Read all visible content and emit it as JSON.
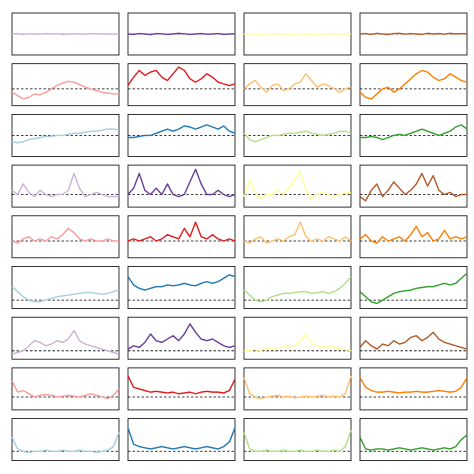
{
  "chart_data": [
    {
      "type": "line",
      "color": "#cab2d6",
      "xlim": [
        0,
        19
      ],
      "ylim": [
        -1,
        1
      ],
      "hline": 0,
      "values": [
        0,
        0.02,
        -0.02,
        0.01,
        0,
        -0.01,
        0.02,
        0,
        0.01,
        -0.02,
        0,
        0.01,
        0,
        -0.01,
        0.02,
        0,
        0.01,
        0,
        -0.01,
        0
      ]
    },
    {
      "type": "line",
      "color": "#6a3d9a",
      "xlim": [
        0,
        19
      ],
      "ylim": [
        -1,
        1
      ],
      "hline": 0,
      "values": [
        0,
        -0.02,
        0.02,
        0,
        -0.03,
        0.02,
        0.01,
        -0.02,
        0,
        0.03,
        0.01,
        -0.02,
        0,
        0.02,
        -0.01,
        0,
        0.02,
        -0.02,
        0,
        0.01
      ]
    },
    {
      "type": "line",
      "color": "#ffff99",
      "xlim": [
        0,
        19
      ],
      "ylim": [
        -1,
        1
      ],
      "hline": 0,
      "values": [
        0,
        0.01,
        0,
        -0.01,
        0.01,
        0,
        0,
        0.01,
        -0.01,
        0,
        0.01,
        0,
        -0.01,
        0,
        0.01,
        0,
        0,
        0.01,
        0,
        0
      ]
    },
    {
      "type": "line",
      "color": "#b15928",
      "xlim": [
        0,
        19
      ],
      "ylim": [
        -1,
        1
      ],
      "hline": 0,
      "values": [
        0,
        0.02,
        -0.02,
        0.03,
        0,
        -0.02,
        0.02,
        0.03,
        -0.01,
        0.02,
        0,
        -0.02,
        0.03,
        0,
        0.02,
        -0.01,
        0.03,
        0,
        0.02,
        0
      ]
    },
    {
      "type": "line",
      "color": "#fb9a99",
      "xlim": [
        0,
        19
      ],
      "ylim": [
        -1,
        1.5
      ],
      "hline": 0,
      "values": [
        -0.2,
        -0.4,
        -0.6,
        -0.5,
        -0.3,
        -0.35,
        -0.2,
        0,
        0.2,
        0.35,
        0.45,
        0.4,
        0.25,
        0.1,
        0,
        -0.1,
        -0.2,
        -0.25,
        -0.3,
        -0.3
      ]
    },
    {
      "type": "line",
      "color": "#e31a1c",
      "xlim": [
        0,
        19
      ],
      "ylim": [
        -1,
        1.5
      ],
      "hline": 0,
      "values": [
        0.2,
        0.7,
        1.1,
        0.8,
        1.0,
        1.1,
        0.7,
        0.5,
        0.9,
        1.3,
        1.1,
        0.6,
        0.4,
        0.6,
        0.9,
        0.7,
        0.4,
        0.3,
        0.2,
        0.3
      ]
    },
    {
      "type": "line",
      "color": "#fdbf6f",
      "xlim": [
        0,
        19
      ],
      "ylim": [
        -1,
        1.5
      ],
      "hline": 0,
      "values": [
        0,
        0.3,
        0.5,
        0.1,
        -0.2,
        0.2,
        0.3,
        -0.1,
        0,
        0.3,
        0.4,
        0.9,
        0.5,
        0.1,
        0.3,
        0.2,
        0,
        -0.2,
        0,
        0.1
      ]
    },
    {
      "type": "line",
      "color": "#ff7f00",
      "xlim": [
        0,
        19
      ],
      "ylim": [
        -1,
        1.5
      ],
      "hline": 0,
      "values": [
        -0.2,
        -0.5,
        -0.6,
        -0.3,
        0,
        0.1,
        -0.2,
        0,
        0.3,
        0.6,
        0.9,
        1.1,
        1.0,
        0.7,
        0.5,
        0.6,
        0.9,
        0.7,
        0.5,
        0.4
      ]
    },
    {
      "type": "line",
      "color": "#a6cee3",
      "xlim": [
        0,
        19
      ],
      "ylim": [
        -1,
        1
      ],
      "hline": 0,
      "values": [
        -0.3,
        -0.35,
        -0.3,
        -0.2,
        -0.15,
        -0.1,
        -0.05,
        -0.05,
        0,
        0,
        0.05,
        0.1,
        0.1,
        0.15,
        0.2,
        0.2,
        0.25,
        0.3,
        0.3,
        0.25
      ]
    },
    {
      "type": "line",
      "color": "#1f78b4",
      "xlim": [
        0,
        19
      ],
      "ylim": [
        -1,
        1
      ],
      "hline": 0,
      "values": [
        -0.1,
        -0.1,
        -0.05,
        0,
        0,
        0.1,
        0.2,
        0.3,
        0.2,
        0.3,
        0.45,
        0.4,
        0.3,
        0.4,
        0.5,
        0.4,
        0.3,
        0.45,
        0.2,
        0.1
      ]
    },
    {
      "type": "line",
      "color": "#b2df8a",
      "xlim": [
        0,
        19
      ],
      "ylim": [
        -1,
        1
      ],
      "hline": 0,
      "values": [
        0.1,
        -0.2,
        -0.3,
        -0.2,
        -0.1,
        0,
        0,
        0.05,
        0.1,
        0.1,
        0.15,
        0.2,
        0.1,
        0.05,
        0,
        0.05,
        0.1,
        0.2,
        0.2,
        0.1
      ]
    },
    {
      "type": "line",
      "color": "#33a02c",
      "xlim": [
        0,
        19
      ],
      "ylim": [
        -1,
        1
      ],
      "hline": 0,
      "values": [
        -0.1,
        -0.1,
        -0.05,
        -0.1,
        -0.2,
        -0.1,
        0,
        0.05,
        0,
        0.1,
        0.2,
        0.3,
        0.2,
        0.1,
        0,
        0.1,
        0.2,
        0.4,
        0.5,
        0.3
      ]
    },
    {
      "type": "line",
      "color": "#cab2d6",
      "xlim": [
        0,
        19
      ],
      "ylim": [
        -0.6,
        1.4
      ],
      "hline": 0,
      "values": [
        0.2,
        0,
        0.5,
        0.1,
        -0.1,
        0.2,
        0,
        -0.1,
        0,
        0,
        0.2,
        1.0,
        0.3,
        -0.1,
        0,
        0.1,
        0,
        -0.1,
        -0.1,
        -0.1
      ]
    },
    {
      "type": "line",
      "color": "#6a3d9a",
      "xlim": [
        0,
        19
      ],
      "ylim": [
        -0.6,
        1.4
      ],
      "hline": 0,
      "values": [
        0,
        0.3,
        1.0,
        0.2,
        0,
        0.3,
        0,
        0.5,
        0,
        -0.1,
        0,
        0.6,
        1.2,
        0.5,
        0,
        0,
        0.2,
        0,
        -0.1,
        0
      ]
    },
    {
      "type": "line",
      "color": "#ffff99",
      "xlim": [
        0,
        19
      ],
      "ylim": [
        -0.6,
        1.4
      ],
      "hline": 0,
      "values": [
        -0.1,
        0.7,
        0.1,
        -0.2,
        0,
        0,
        0.2,
        0,
        0.3,
        0.7,
        1.1,
        0.2,
        -0.2,
        0,
        0.1,
        0,
        -0.1,
        0,
        0.1,
        0.1
      ]
    },
    {
      "type": "line",
      "color": "#b15928",
      "xlim": [
        0,
        19
      ],
      "ylim": [
        -0.6,
        1.4
      ],
      "hline": 0,
      "values": [
        -0.1,
        -0.3,
        0.2,
        0.5,
        -0.1,
        0.2,
        0.6,
        0.3,
        0,
        0.2,
        0.5,
        1.0,
        0.4,
        0.9,
        0.2,
        0,
        0.1,
        -0.1,
        0,
        0
      ]
    },
    {
      "type": "line",
      "color": "#fb9a99",
      "xlim": [
        0,
        19
      ],
      "ylim": [
        -0.8,
        1.2
      ],
      "hline": 0,
      "values": [
        0,
        -0.1,
        0.1,
        0.2,
        0,
        0.1,
        0,
        0.2,
        0.1,
        0.3,
        0.6,
        0.4,
        0.1,
        0,
        0.1,
        0,
        0,
        0.1,
        0,
        0
      ]
    },
    {
      "type": "line",
      "color": "#e31a1c",
      "xlim": [
        0,
        19
      ],
      "ylim": [
        -0.8,
        1.2
      ],
      "hline": 0,
      "values": [
        0,
        0.1,
        0,
        0.1,
        0.2,
        0,
        0.1,
        0.3,
        0.2,
        0.1,
        0.6,
        0.2,
        0.9,
        0.2,
        0.1,
        0.3,
        0.1,
        0,
        0.1,
        0
      ]
    },
    {
      "type": "line",
      "color": "#fdbf6f",
      "xlim": [
        0,
        19
      ],
      "ylim": [
        -0.8,
        1.2
      ],
      "hline": 0,
      "values": [
        0,
        -0.1,
        0.1,
        0.2,
        -0.1,
        0,
        0.1,
        0,
        0.2,
        0.3,
        0.9,
        0.2,
        0,
        0.1,
        0,
        0.2,
        0.1,
        0,
        0.2,
        0
      ]
    },
    {
      "type": "line",
      "color": "#ff7f00",
      "xlim": [
        0,
        19
      ],
      "ylim": [
        -0.8,
        1.2
      ],
      "hline": 0,
      "values": [
        0.1,
        0.3,
        0,
        -0.1,
        0.2,
        0,
        0.1,
        0.2,
        0,
        0.3,
        0.7,
        0.2,
        0.4,
        0,
        0.1,
        0.5,
        0.1,
        0.2,
        0.1,
        0.2
      ]
    },
    {
      "type": "line",
      "color": "#a6cee3",
      "xlim": [
        0,
        19
      ],
      "ylim": [
        -0.5,
        2
      ],
      "hline": 0,
      "values": [
        0.8,
        0.5,
        0.2,
        0,
        -0.1,
        -0.1,
        0,
        0.1,
        0.2,
        0.25,
        0.3,
        0.35,
        0.4,
        0.45,
        0.45,
        0.4,
        0.35,
        0.4,
        0.5,
        0.6
      ]
    },
    {
      "type": "line",
      "color": "#1f78b4",
      "xlim": [
        0,
        19
      ],
      "ylim": [
        -0.5,
        2
      ],
      "hline": 0,
      "values": [
        1.4,
        0.9,
        0.7,
        0.6,
        0.7,
        0.8,
        0.8,
        0.9,
        0.85,
        0.9,
        1.0,
        0.9,
        0.85,
        1.0,
        1.1,
        1.0,
        1.1,
        1.3,
        1.5,
        1.4
      ]
    },
    {
      "type": "line",
      "color": "#b2df8a",
      "xlim": [
        0,
        19
      ],
      "ylim": [
        -0.5,
        2
      ],
      "hline": 0,
      "values": [
        0.6,
        0.3,
        0,
        -0.1,
        0,
        0.2,
        0.3,
        0.4,
        0.4,
        0.45,
        0.5,
        0.5,
        0.4,
        0.45,
        0.5,
        0.4,
        0.5,
        0.7,
        1.0,
        1.4
      ]
    },
    {
      "type": "line",
      "color": "#33a02c",
      "xlim": [
        0,
        19
      ],
      "ylim": [
        -0.5,
        2
      ],
      "hline": 0,
      "values": [
        0.5,
        0.2,
        -0.1,
        -0.2,
        0,
        0.2,
        0.4,
        0.5,
        0.55,
        0.6,
        0.7,
        0.75,
        0.8,
        0.8,
        0.9,
        1.0,
        0.9,
        1.0,
        1.3,
        1.6
      ]
    },
    {
      "type": "line",
      "color": "#cab2d6",
      "xlim": [
        0,
        19
      ],
      "ylim": [
        -0.5,
        2
      ],
      "hline": 0,
      "values": [
        -0.2,
        -0.1,
        0,
        0.3,
        0.6,
        0.5,
        0.3,
        0.4,
        0.6,
        0.5,
        0.7,
        1.2,
        0.6,
        0.4,
        0.3,
        0.2,
        0.1,
        0,
        -0.1,
        -0.2
      ]
    },
    {
      "type": "line",
      "color": "#6a3d9a",
      "xlim": [
        0,
        19
      ],
      "ylim": [
        -0.5,
        2
      ],
      "hline": 0,
      "values": [
        0.1,
        0.3,
        0.2,
        0.5,
        1.0,
        0.6,
        0.5,
        0.7,
        0.9,
        0.6,
        1.0,
        1.6,
        1.1,
        0.7,
        0.6,
        0.7,
        0.5,
        0.3,
        0.2,
        0.3
      ]
    },
    {
      "type": "line",
      "color": "#ffff99",
      "xlim": [
        0,
        19
      ],
      "ylim": [
        -0.5,
        2
      ],
      "hline": 0,
      "values": [
        0,
        0,
        0.1,
        0,
        0.2,
        0.1,
        0.2,
        0.2,
        0.3,
        0.3,
        0.6,
        1.0,
        0.4,
        0.3,
        0.2,
        0.3,
        0.2,
        0.1,
        0.1,
        0
      ]
    },
    {
      "type": "line",
      "color": "#b15928",
      "xlim": [
        0,
        19
      ],
      "ylim": [
        -0.5,
        2
      ],
      "hline": 0,
      "values": [
        0.2,
        0.6,
        0.3,
        0.1,
        0.4,
        0.3,
        0.6,
        0.4,
        0.5,
        0.8,
        0.9,
        0.6,
        0.8,
        1.1,
        0.7,
        0.5,
        0.4,
        0.3,
        0.2,
        0.1
      ]
    },
    {
      "type": "line",
      "color": "#fb9a99",
      "xlim": [
        0,
        19
      ],
      "ylim": [
        -0.8,
        1.8
      ],
      "hline": 0,
      "values": [
        1.0,
        0.3,
        0.4,
        0.2,
        0,
        0.1,
        0.15,
        0.1,
        0,
        0.05,
        0.1,
        0.05,
        0,
        0.1,
        0.2,
        0.1,
        0,
        -0.1,
        0.1,
        0.5
      ]
    },
    {
      "type": "line",
      "color": "#e31a1c",
      "xlim": [
        0,
        19
      ],
      "ylim": [
        -0.8,
        1.8
      ],
      "hline": 0,
      "values": [
        1.3,
        0.6,
        0.5,
        0.4,
        0.3,
        0.35,
        0.3,
        0.25,
        0.3,
        0.2,
        0.25,
        0.3,
        0.2,
        0.3,
        0.35,
        0.3,
        0.3,
        0.25,
        0.4,
        1.1
      ]
    },
    {
      "type": "line",
      "color": "#fdbf6f",
      "xlim": [
        0,
        19
      ],
      "ylim": [
        -0.8,
        1.8
      ],
      "hline": 0,
      "values": [
        1.2,
        0.2,
        0,
        -0.1,
        0,
        0.05,
        0.1,
        0,
        0.05,
        -0.05,
        0,
        0.05,
        0,
        0.05,
        0.1,
        0,
        0.05,
        0,
        0.2,
        1.3
      ]
    },
    {
      "type": "line",
      "color": "#ff7f00",
      "xlim": [
        0,
        19
      ],
      "ylim": [
        -0.8,
        1.8
      ],
      "hline": 0,
      "values": [
        1.2,
        0.6,
        0.4,
        0.3,
        0.3,
        0.35,
        0.3,
        0.25,
        0.3,
        0.3,
        0.35,
        0.3,
        0.3,
        0.35,
        0.4,
        0.35,
        0.3,
        0.35,
        0.6,
        1.2
      ]
    },
    {
      "type": "line",
      "color": "#a6cee3",
      "xlim": [
        0,
        19
      ],
      "ylim": [
        -0.4,
        1.4
      ],
      "hline": 0,
      "values": [
        0.6,
        0.1,
        0,
        -0.05,
        0,
        0,
        0.05,
        0,
        0,
        0.05,
        0,
        0,
        0.05,
        0,
        0,
        -0.05,
        0,
        0.05,
        0.2,
        0.8
      ]
    },
    {
      "type": "line",
      "color": "#1f78b4",
      "xlim": [
        0,
        19
      ],
      "ylim": [
        -0.4,
        1.4
      ],
      "hline": 0,
      "values": [
        1.0,
        0.3,
        0.2,
        0.15,
        0.1,
        0.15,
        0.2,
        0.15,
        0.1,
        0.15,
        0.2,
        0.15,
        0.1,
        0.15,
        0.2,
        0.15,
        0.1,
        0.2,
        0.4,
        1.0
      ]
    },
    {
      "type": "line",
      "color": "#b2df8a",
      "xlim": [
        0,
        19
      ],
      "ylim": [
        -0.4,
        1.4
      ],
      "hline": 0,
      "values": [
        0.8,
        0.1,
        0,
        0,
        0.05,
        0,
        0,
        0.05,
        0,
        0,
        0.05,
        0,
        0,
        0.05,
        0,
        0,
        0.05,
        0,
        0.2,
        0.9
      ]
    },
    {
      "type": "line",
      "color": "#33a02c",
      "xlim": [
        0,
        19
      ],
      "ylim": [
        -0.4,
        1.4
      ],
      "hline": 0,
      "values": [
        0.6,
        0.1,
        0.05,
        0.1,
        0.1,
        0.05,
        0.1,
        0.15,
        0.1,
        0.05,
        0.1,
        0.15,
        0.1,
        0.05,
        0.1,
        0.15,
        0.1,
        0.2,
        0.5,
        0.7
      ]
    }
  ]
}
